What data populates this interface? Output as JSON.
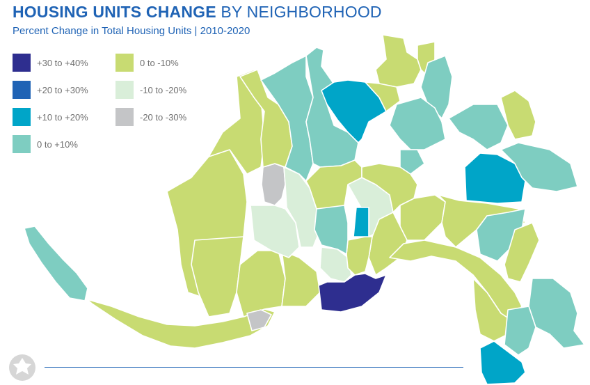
{
  "title": {
    "bold": "HOUSING UNITS CHANGE",
    "light": "BY NEIGHBORHOOD"
  },
  "subtitle": "Percent Change in Total Housing Units | 2010-2020",
  "legend": [
    {
      "label": "+30 to +40%",
      "color": "#2e2e8f"
    },
    {
      "label": "+20 to +30%",
      "color": "#1f63b5"
    },
    {
      "label": "+10 to +20%",
      "color": "#00a5c8"
    },
    {
      "label": "0 to +10%",
      "color": "#7ecdc1"
    },
    {
      "label": "0 to -10%",
      "color": "#c8db72"
    },
    {
      "label": "-10 to -20%",
      "color": "#d9eed9"
    },
    {
      "label": "-20 to -30%",
      "color": "#c4c5c7"
    }
  ],
  "icons": {
    "logo": "city-logo-icon"
  }
}
